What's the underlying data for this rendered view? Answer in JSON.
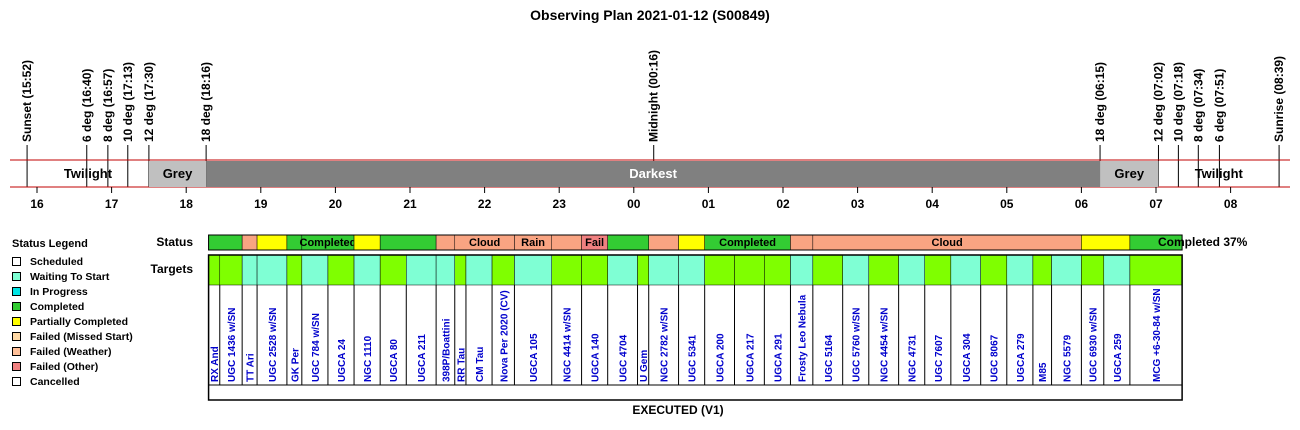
{
  "title": "Observing Plan 2021-01-12 (S00849)",
  "footer": "EXECUTED (V1)",
  "completion": "Completed 37%",
  "row_labels": {
    "status": "Status",
    "targets": "Targets"
  },
  "legend": {
    "title": "Status Legend",
    "items": [
      {
        "label": "Scheduled",
        "color": "#ffffff"
      },
      {
        "label": "Waiting To Start",
        "color": "#7fffd4"
      },
      {
        "label": "In Progress",
        "color": "#00e5e5"
      },
      {
        "label": "Completed",
        "color": "#33cc33"
      },
      {
        "label": "Partially Completed",
        "color": "#ffff00"
      },
      {
        "label": "Failed (Missed Start)",
        "color": "#ffd9a6"
      },
      {
        "label": "Failed (Weather)",
        "color": "#ffc099"
      },
      {
        "label": "Failed (Other)",
        "color": "#f08080"
      },
      {
        "label": "Cancelled",
        "color": "#ffffff"
      }
    ]
  },
  "colors": {
    "completed": "#33cc33",
    "partial": "#ffff00",
    "weather": "#f9a482",
    "other": "#f08080",
    "target_green": "#7fff00",
    "target_aqua": "#7fffd4",
    "darkest": "#808080",
    "grey": "#c0c0c0",
    "red_line": "#c00000",
    "target_text": "#0000cc"
  },
  "chart_data": {
    "type": "timeline",
    "x_unit": "hour",
    "x_range": [
      15.55,
      32.7
    ],
    "hour_ticks": [
      {
        "h": 16,
        "label": "16"
      },
      {
        "h": 17,
        "label": "17"
      },
      {
        "h": 18,
        "label": "18"
      },
      {
        "h": 19,
        "label": "19"
      },
      {
        "h": 20,
        "label": "20"
      },
      {
        "h": 21,
        "label": "21"
      },
      {
        "h": 22,
        "label": "22"
      },
      {
        "h": 23,
        "label": "23"
      },
      {
        "h": 24,
        "label": "00"
      },
      {
        "h": 25,
        "label": "01"
      },
      {
        "h": 26,
        "label": "02"
      },
      {
        "h": 27,
        "label": "03"
      },
      {
        "h": 28,
        "label": "04"
      },
      {
        "h": 29,
        "label": "05"
      },
      {
        "h": 30,
        "label": "06"
      },
      {
        "h": 31,
        "label": "07"
      },
      {
        "h": 32,
        "label": "08"
      }
    ],
    "events": [
      {
        "h": 15.867,
        "label": "Sunset (15:52)"
      },
      {
        "h": 16.667,
        "label": "6 deg (16:40)"
      },
      {
        "h": 16.95,
        "label": "8 deg (16:57)"
      },
      {
        "h": 17.217,
        "label": "10 deg (17:13)"
      },
      {
        "h": 17.5,
        "label": "12 deg (17:30)"
      },
      {
        "h": 18.267,
        "label": "18 deg (18:16)"
      },
      {
        "h": 24.267,
        "label": "Midnight (00:16)"
      },
      {
        "h": 30.25,
        "label": "18 deg (06:15)"
      },
      {
        "h": 31.033,
        "label": "12 deg (07:02)"
      },
      {
        "h": 31.3,
        "label": "10 deg (07:18)"
      },
      {
        "h": 31.567,
        "label": "8 deg (07:34)"
      },
      {
        "h": 31.85,
        "label": "6 deg (07:51)"
      },
      {
        "h": 32.65,
        "label": "Sunrise (08:39)"
      }
    ],
    "twilight_bands": [
      {
        "start": 15.867,
        "end": 17.5,
        "label": "Twilight",
        "fill": "#ffffff"
      },
      {
        "start": 17.5,
        "end": 18.267,
        "label": "Grey",
        "fill": "#c0c0c0"
      },
      {
        "start": 18.267,
        "end": 30.25,
        "label": "Darkest",
        "fill": "#808080"
      },
      {
        "start": 30.25,
        "end": 31.033,
        "label": "Grey",
        "fill": "#c0c0c0"
      },
      {
        "start": 31.033,
        "end": 32.65,
        "label": "Twilight",
        "fill": "#ffffff"
      }
    ],
    "status_segments": [
      {
        "start": 18.3,
        "end": 18.75,
        "status": "completed",
        "label": ""
      },
      {
        "start": 18.75,
        "end": 18.95,
        "status": "weather",
        "label": ""
      },
      {
        "start": 18.95,
        "end": 19.35,
        "status": "partial",
        "label": ""
      },
      {
        "start": 19.35,
        "end": 19.55,
        "status": "completed",
        "label": ""
      },
      {
        "start": 19.55,
        "end": 20.25,
        "status": "completed",
        "label": "Completed"
      },
      {
        "start": 20.25,
        "end": 20.6,
        "status": "partial",
        "label": ""
      },
      {
        "start": 20.6,
        "end": 21.35,
        "status": "completed",
        "label": ""
      },
      {
        "start": 21.35,
        "end": 21.6,
        "status": "weather",
        "label": ""
      },
      {
        "start": 21.6,
        "end": 22.4,
        "status": "weather",
        "label": "Cloud"
      },
      {
        "start": 22.4,
        "end": 22.9,
        "status": "weather",
        "label": "Rain"
      },
      {
        "start": 22.9,
        "end": 23.3,
        "status": "weather",
        "label": ""
      },
      {
        "start": 23.3,
        "end": 23.65,
        "status": "other",
        "label": "Fail"
      },
      {
        "start": 23.65,
        "end": 24.2,
        "status": "completed",
        "label": ""
      },
      {
        "start": 24.2,
        "end": 24.6,
        "status": "weather",
        "label": ""
      },
      {
        "start": 24.6,
        "end": 24.95,
        "status": "partial",
        "label": ""
      },
      {
        "start": 24.95,
        "end": 26.1,
        "status": "completed",
        "label": "Completed"
      },
      {
        "start": 26.1,
        "end": 26.4,
        "status": "weather",
        "label": ""
      },
      {
        "start": 26.4,
        "end": 30.0,
        "status": "weather",
        "label": "Cloud"
      },
      {
        "start": 30.0,
        "end": 30.65,
        "status": "partial",
        "label": ""
      },
      {
        "start": 30.65,
        "end": 31.35,
        "status": "completed",
        "label": ""
      }
    ],
    "targets": [
      {
        "start": 18.3,
        "end": 18.45,
        "name": "RX And",
        "fill": "green"
      },
      {
        "start": 18.45,
        "end": 18.75,
        "name": "UGC 1436 w/SN",
        "fill": "green"
      },
      {
        "start": 18.75,
        "end": 18.95,
        "name": "TT Ari",
        "fill": "aqua"
      },
      {
        "start": 18.95,
        "end": 19.35,
        "name": "UGC 2528 w/SN",
        "fill": "aqua"
      },
      {
        "start": 19.35,
        "end": 19.55,
        "name": "GK Per",
        "fill": "green"
      },
      {
        "start": 19.55,
        "end": 19.9,
        "name": "UGC 784 w/SN",
        "fill": "aqua"
      },
      {
        "start": 19.9,
        "end": 20.25,
        "name": "UGCA 24",
        "fill": "green"
      },
      {
        "start": 20.25,
        "end": 20.6,
        "name": "NGC 1110",
        "fill": "aqua"
      },
      {
        "start": 20.6,
        "end": 20.95,
        "name": "UGCA 80",
        "fill": "green"
      },
      {
        "start": 20.95,
        "end": 21.35,
        "name": "UGCA 211",
        "fill": "aqua"
      },
      {
        "start": 21.35,
        "end": 21.6,
        "name": "398P/Boattini",
        "fill": "aqua"
      },
      {
        "start": 21.6,
        "end": 21.75,
        "name": "RR Tau",
        "fill": "green"
      },
      {
        "start": 21.75,
        "end": 22.1,
        "name": "CM Tau",
        "fill": "aqua"
      },
      {
        "start": 22.1,
        "end": 22.4,
        "name": "Nova Per 2020 (CV)",
        "fill": "green"
      },
      {
        "start": 22.4,
        "end": 22.9,
        "name": "UGCA 105",
        "fill": "aqua"
      },
      {
        "start": 22.9,
        "end": 23.3,
        "name": "NGC 4414 w/SN",
        "fill": "green"
      },
      {
        "start": 23.3,
        "end": 23.65,
        "name": "UGCA 140",
        "fill": "green"
      },
      {
        "start": 23.65,
        "end": 24.05,
        "name": "UGC 4704",
        "fill": "aqua"
      },
      {
        "start": 24.05,
        "end": 24.2,
        "name": "U Gem",
        "fill": "green"
      },
      {
        "start": 24.2,
        "end": 24.6,
        "name": "NGC 2782 w/SN",
        "fill": "aqua"
      },
      {
        "start": 24.6,
        "end": 24.95,
        "name": "UGC 5341",
        "fill": "aqua"
      },
      {
        "start": 24.95,
        "end": 25.35,
        "name": "UGCA 200",
        "fill": "green"
      },
      {
        "start": 25.35,
        "end": 25.75,
        "name": "UGCA 217",
        "fill": "green"
      },
      {
        "start": 25.75,
        "end": 26.1,
        "name": "UGCA 291",
        "fill": "green"
      },
      {
        "start": 26.1,
        "end": 26.4,
        "name": "Frosty Leo Nebula",
        "fill": "aqua"
      },
      {
        "start": 26.4,
        "end": 26.8,
        "name": "UGC 5164",
        "fill": "green"
      },
      {
        "start": 26.8,
        "end": 27.15,
        "name": "UGC 5760 w/SN",
        "fill": "aqua"
      },
      {
        "start": 27.15,
        "end": 27.55,
        "name": "NGC 4454 w/SN",
        "fill": "green"
      },
      {
        "start": 27.55,
        "end": 27.9,
        "name": "NGC 4731",
        "fill": "aqua"
      },
      {
        "start": 27.9,
        "end": 28.25,
        "name": "UGC 7607",
        "fill": "green"
      },
      {
        "start": 28.25,
        "end": 28.65,
        "name": "UGCA 304",
        "fill": "aqua"
      },
      {
        "start": 28.65,
        "end": 29.0,
        "name": "UGC 8067",
        "fill": "green"
      },
      {
        "start": 29.0,
        "end": 29.35,
        "name": "UGCA 279",
        "fill": "aqua"
      },
      {
        "start": 29.35,
        "end": 29.6,
        "name": "M85",
        "fill": "green"
      },
      {
        "start": 29.6,
        "end": 30.0,
        "name": "NGC 5579",
        "fill": "aqua"
      },
      {
        "start": 30.0,
        "end": 30.3,
        "name": "UGC 6930 w/SN",
        "fill": "green"
      },
      {
        "start": 30.3,
        "end": 30.65,
        "name": "UGCA 259",
        "fill": "aqua"
      },
      {
        "start": 30.65,
        "end": 31.35,
        "name": "MCG +6-30-84 w/SN",
        "fill": "green"
      }
    ]
  }
}
